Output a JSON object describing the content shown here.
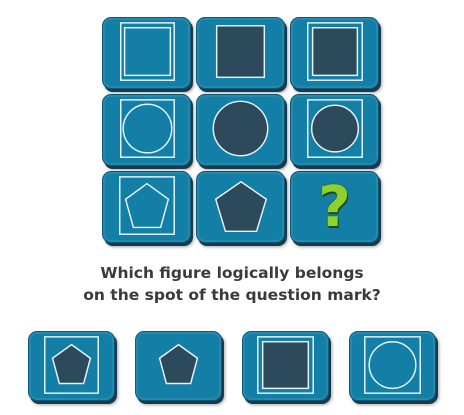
{
  "question": {
    "line1": "Which figure logically belongs",
    "line2": "on the spot of the question mark?"
  },
  "colors": {
    "tile": "#137fa6",
    "shape_fill": "#2c4a5c",
    "outline": "#e6f3f8",
    "question_mark": "#8fd12a",
    "text": "#3a3a3a"
  },
  "grid": [
    {
      "row": 1,
      "col": 1,
      "shape": "square",
      "shape_style": "outline",
      "frame": "square"
    },
    {
      "row": 1,
      "col": 2,
      "shape": "square",
      "shape_style": "filled",
      "frame": "none"
    },
    {
      "row": 1,
      "col": 3,
      "shape": "square",
      "shape_style": "filled",
      "frame": "square"
    },
    {
      "row": 2,
      "col": 1,
      "shape": "circle",
      "shape_style": "outline",
      "frame": "square"
    },
    {
      "row": 2,
      "col": 2,
      "shape": "circle",
      "shape_style": "filled",
      "frame": "none"
    },
    {
      "row": 2,
      "col": 3,
      "shape": "circle",
      "shape_style": "filled",
      "frame": "square"
    },
    {
      "row": 3,
      "col": 1,
      "shape": "pentagon",
      "shape_style": "outline",
      "frame": "square"
    },
    {
      "row": 3,
      "col": 2,
      "shape": "pentagon",
      "shape_style": "filled",
      "frame": "none"
    },
    {
      "row": 3,
      "col": 3,
      "shape": "question-mark",
      "label": "?"
    }
  ],
  "answers": [
    {
      "option": 1,
      "shape": "pentagon",
      "shape_style": "filled",
      "frame": "square"
    },
    {
      "option": 2,
      "shape": "pentagon",
      "shape_style": "filled",
      "frame": "none"
    },
    {
      "option": 3,
      "shape": "square",
      "shape_style": "filled",
      "frame": "square"
    },
    {
      "option": 4,
      "shape": "circle",
      "shape_style": "outline",
      "frame": "square"
    }
  ]
}
